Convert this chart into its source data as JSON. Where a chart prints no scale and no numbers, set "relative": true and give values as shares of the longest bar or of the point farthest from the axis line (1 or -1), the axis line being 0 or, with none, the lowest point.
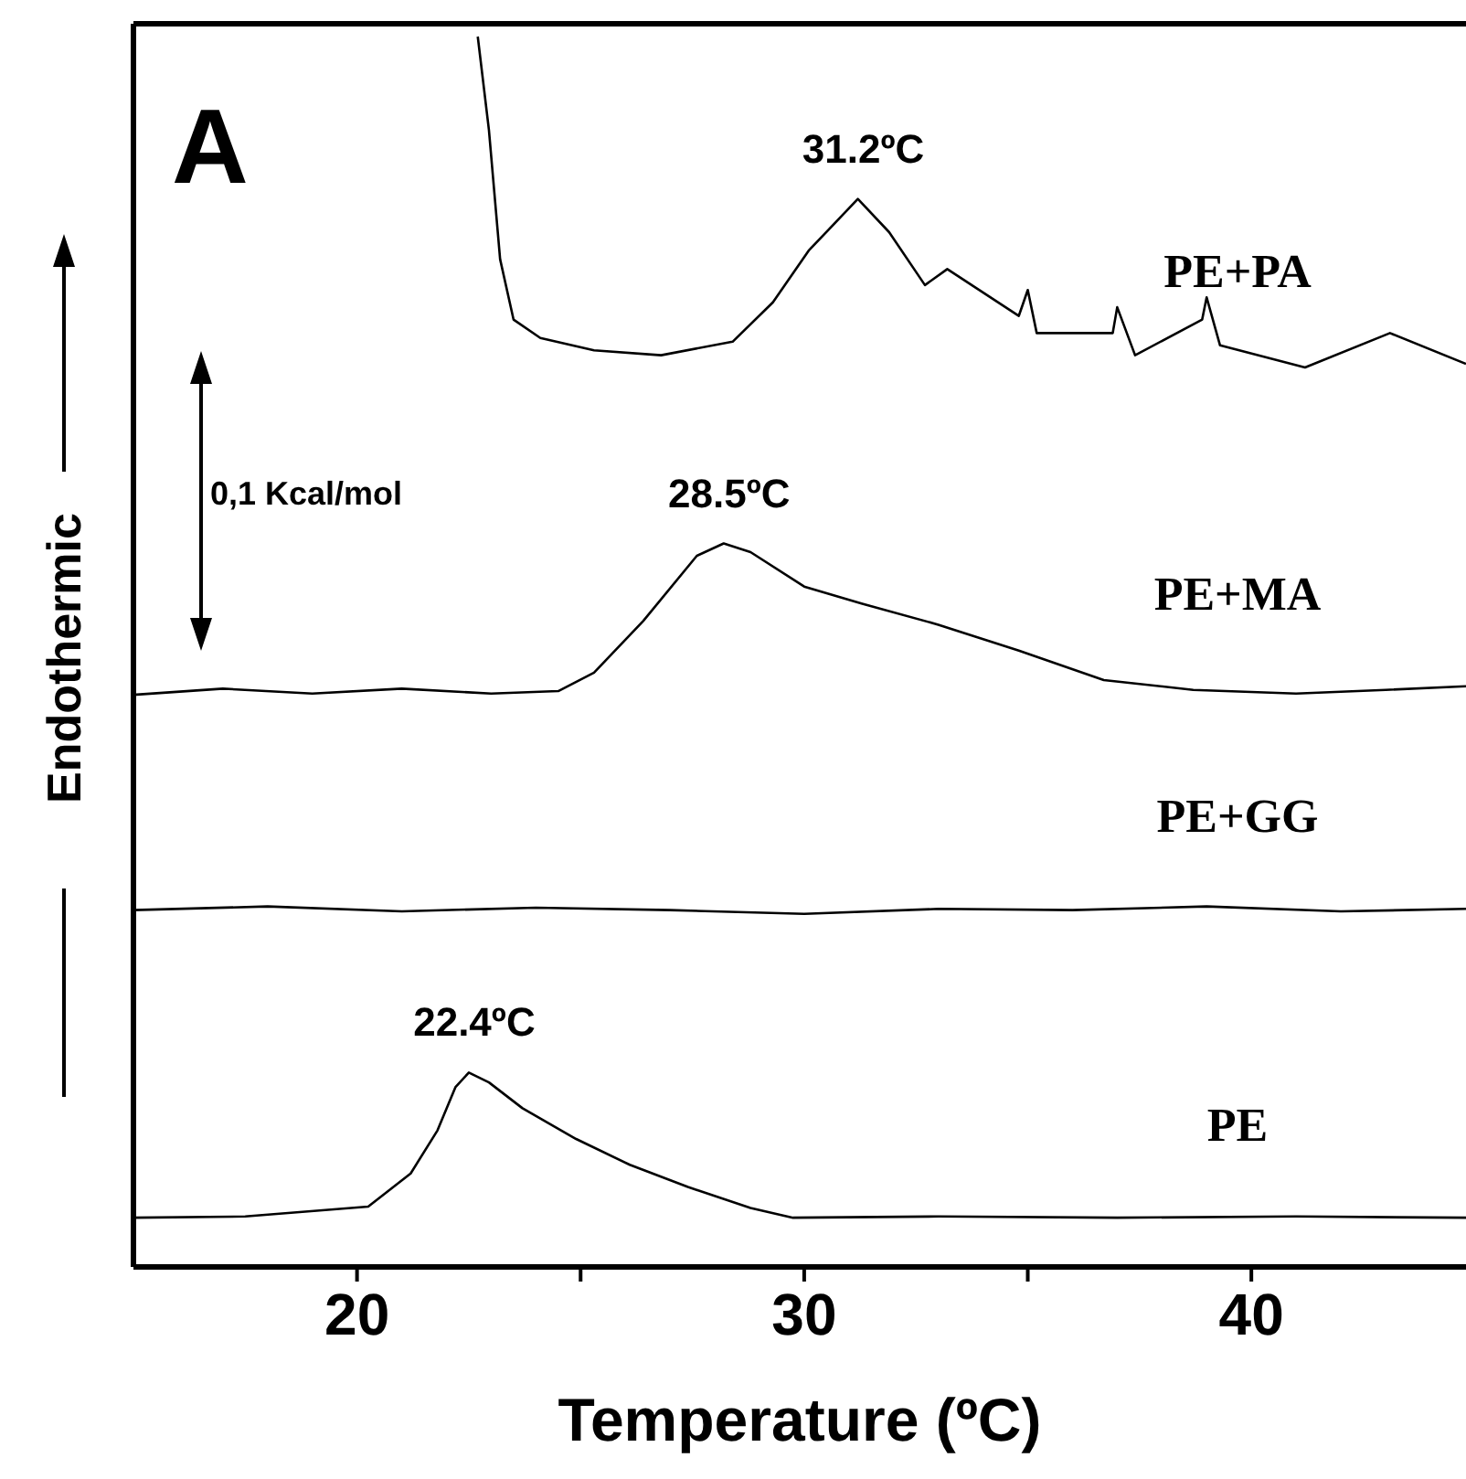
{
  "chart_data": {
    "type": "line",
    "relative": true,
    "xlabel": "Temperature (ºC)",
    "ylabel": "Endothermic",
    "xlim": [
      15,
      44.8
    ],
    "xticks": [
      20,
      {
        "value": 25,
        "label": null
      },
      30,
      {
        "value": 35,
        "label": null
      },
      40
    ],
    "series": [
      {
        "name": "PE+PA",
        "color": "#000000",
        "x": [
          22.7,
          22.95,
          23.2,
          23.5,
          24.1,
          25.3,
          26.8,
          28.4,
          29.3,
          30.1,
          31.2,
          31.9,
          32.7,
          33.2,
          34.8,
          35.0,
          35.2,
          36.9,
          37.0,
          37.4,
          38.9,
          39.0,
          39.3,
          41.2,
          43.1,
          44.8
        ],
        "values": [
          1.0,
          0.924,
          0.819,
          0.77,
          0.755,
          0.745,
          0.741,
          0.752,
          0.784,
          0.826,
          0.868,
          0.841,
          0.798,
          0.811,
          0.773,
          0.794,
          0.759,
          0.759,
          0.78,
          0.741,
          0.77,
          0.788,
          0.749,
          0.731,
          0.759,
          0.734
        ]
      },
      {
        "name": "PE+MA",
        "color": "#000000",
        "x": [
          15.0,
          17.0,
          19.0,
          21.0,
          23.0,
          24.5,
          25.3,
          26.4,
          27.6,
          28.2,
          28.8,
          30.0,
          31.3,
          33.0,
          34.8,
          36.7,
          38.7,
          41.0,
          43.0,
          44.8
        ],
        "values": [
          0.465,
          0.47,
          0.466,
          0.47,
          0.466,
          0.468,
          0.483,
          0.525,
          0.578,
          0.588,
          0.581,
          0.553,
          0.539,
          0.522,
          0.501,
          0.477,
          0.469,
          0.466,
          0.469,
          0.472
        ]
      },
      {
        "name": "PE+GG",
        "color": "#000000",
        "x": [
          15.0,
          18.0,
          21.0,
          24.0,
          27.0,
          30.0,
          33.0,
          36.0,
          39.0,
          42.0,
          44.8
        ],
        "values": [
          0.29,
          0.293,
          0.289,
          0.292,
          0.29,
          0.287,
          0.291,
          0.29,
          0.293,
          0.289,
          0.291
        ]
      },
      {
        "name": "PE",
        "color": "#000000",
        "x": [
          15.0,
          17.5,
          20.25,
          21.2,
          21.8,
          22.2,
          22.5,
          22.95,
          23.7,
          24.9,
          26.1,
          27.4,
          28.8,
          29.75,
          33.0,
          37.0,
          41.0,
          44.8
        ],
        "values": [
          0.04,
          0.041,
          0.049,
          0.076,
          0.111,
          0.146,
          0.158,
          0.15,
          0.129,
          0.104,
          0.083,
          0.065,
          0.048,
          0.04,
          0.041,
          0.04,
          0.041,
          0.04
        ]
      }
    ],
    "annotations": [
      "A",
      "0,1 Kcal/mol",
      {
        "text": "31.2ºC",
        "x": 31.2,
        "y": 0.868
      },
      {
        "text": "28.5ºC",
        "x": 28.2,
        "y": 0.588
      },
      {
        "text": "22.4ºC",
        "x": 22.5,
        "y": 0.158
      }
    ]
  }
}
